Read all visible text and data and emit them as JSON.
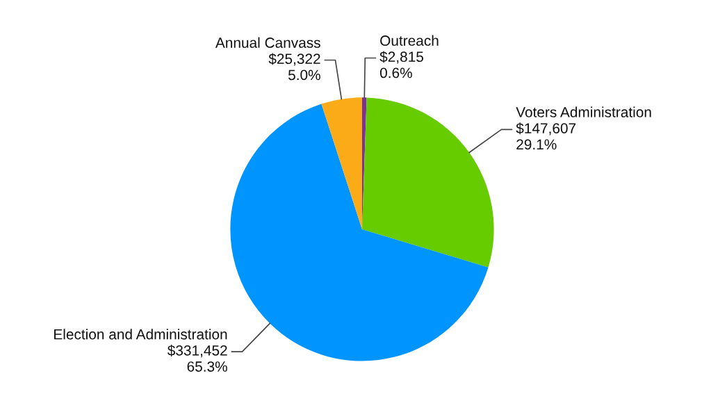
{
  "chart_data": {
    "type": "pie",
    "categories": [
      "Outreach",
      "Voters Administration",
      "Election and Administration",
      "Annual Canvass"
    ],
    "values": [
      2815,
      147607,
      331452,
      25322
    ],
    "colors": [
      "#7b3294",
      "#66cc00",
      "#0094ff",
      "#fbab18"
    ],
    "value_labels": [
      "$2,815\n0.6%",
      "$147,607\n29.1%",
      "$331,452\n65.3%",
      "$25,322\n5.0%"
    ]
  }
}
